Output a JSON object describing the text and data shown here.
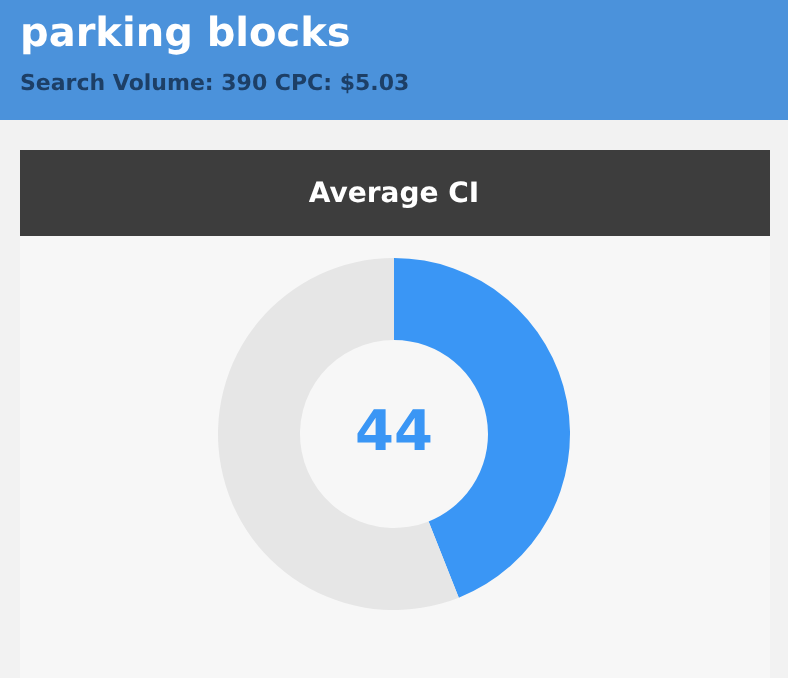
{
  "chart_data": {
    "type": "donut",
    "title": "parking blocks",
    "subtitle": "Search Volume: 390 CPC: $5.03",
    "xlabel": "Average CI",
    "categories": [
      null,
      null
    ],
    "values": [
      44,
      56
    ],
    "colors": [
      "#3a96f5",
      "#e6e6e6"
    ],
    "value_labels": [
      "44",
      null
    ]
  }
}
